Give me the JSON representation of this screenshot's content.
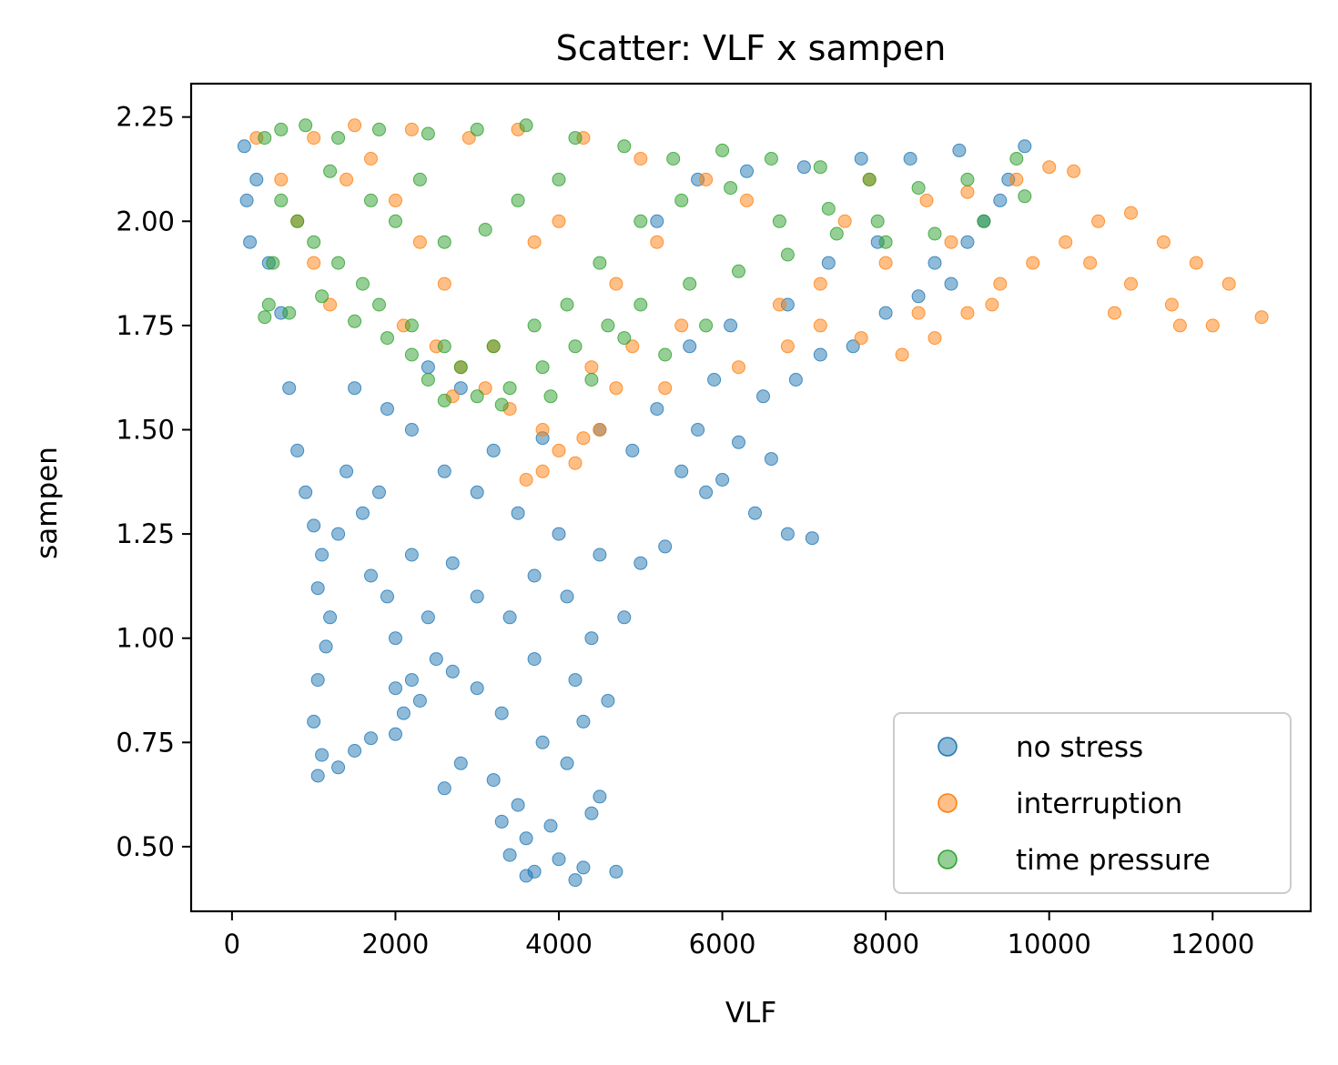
{
  "chart_data": {
    "type": "scatter",
    "title": "Scatter: VLF x sampen",
    "xlabel": "VLF",
    "ylabel": "sampen",
    "xlim": [
      -500,
      13200
    ],
    "ylim": [
      0.345,
      2.33
    ],
    "xticks": [
      0,
      2000,
      4000,
      6000,
      8000,
      10000,
      12000
    ],
    "xtick_labels": [
      "0",
      "2000",
      "4000",
      "6000",
      "8000",
      "10000",
      "12000"
    ],
    "yticks": [
      0.5,
      0.75,
      1.0,
      1.25,
      1.5,
      1.75,
      2.0,
      2.25
    ],
    "ytick_labels": [
      "0.50",
      "0.75",
      "1.00",
      "1.25",
      "1.50",
      "1.75",
      "2.00",
      "2.25"
    ],
    "grid": false,
    "legend_position": "lower-right",
    "marker_alpha": 0.5,
    "series": [
      {
        "name": "no stress",
        "color": "#1f77b4",
        "points": [
          [
            150,
            2.18
          ],
          [
            180,
            2.05
          ],
          [
            220,
            1.95
          ],
          [
            300,
            2.1
          ],
          [
            450,
            1.9
          ],
          [
            600,
            1.78
          ],
          [
            700,
            1.6
          ],
          [
            800,
            1.45
          ],
          [
            900,
            1.35
          ],
          [
            1000,
            1.27
          ],
          [
            1100,
            1.2
          ],
          [
            1050,
            1.12
          ],
          [
            1200,
            1.05
          ],
          [
            1150,
            0.98
          ],
          [
            1050,
            0.9
          ],
          [
            1000,
            0.8
          ],
          [
            1100,
            0.72
          ],
          [
            1050,
            0.67
          ],
          [
            1300,
            0.69
          ],
          [
            1500,
            0.73
          ],
          [
            1700,
            0.76
          ],
          [
            2000,
            0.77
          ],
          [
            2100,
            0.82
          ],
          [
            2300,
            0.85
          ],
          [
            2000,
            0.88
          ],
          [
            2200,
            0.9
          ],
          [
            2500,
            0.95
          ],
          [
            2700,
            0.92
          ],
          [
            3000,
            0.88
          ],
          [
            3300,
            0.82
          ],
          [
            2800,
            0.7
          ],
          [
            2600,
            0.64
          ],
          [
            3200,
            0.66
          ],
          [
            3500,
            0.6
          ],
          [
            3300,
            0.56
          ],
          [
            3600,
            0.52
          ],
          [
            3400,
            0.48
          ],
          [
            3700,
            0.44
          ],
          [
            4000,
            0.47
          ],
          [
            4300,
            0.45
          ],
          [
            4700,
            0.44
          ],
          [
            4200,
            0.42
          ],
          [
            3600,
            0.43
          ],
          [
            3900,
            0.55
          ],
          [
            4400,
            0.58
          ],
          [
            4500,
            0.62
          ],
          [
            4100,
            0.7
          ],
          [
            3800,
            0.75
          ],
          [
            4300,
            0.8
          ],
          [
            4600,
            0.85
          ],
          [
            4200,
            0.9
          ],
          [
            3700,
            0.95
          ],
          [
            4400,
            1.0
          ],
          [
            4800,
            1.05
          ],
          [
            4100,
            1.1
          ],
          [
            3700,
            1.15
          ],
          [
            4500,
            1.2
          ],
          [
            5000,
            1.18
          ],
          [
            5300,
            1.22
          ],
          [
            4000,
            1.25
          ],
          [
            3500,
            1.3
          ],
          [
            3000,
            1.35
          ],
          [
            2600,
            1.4
          ],
          [
            3200,
            1.45
          ],
          [
            3800,
            1.48
          ],
          [
            4500,
            1.5
          ],
          [
            5200,
            1.55
          ],
          [
            5700,
            1.5
          ],
          [
            6200,
            1.47
          ],
          [
            6600,
            1.43
          ],
          [
            6000,
            1.38
          ],
          [
            6400,
            1.3
          ],
          [
            6800,
            1.25
          ],
          [
            7100,
            1.24
          ],
          [
            5800,
            1.35
          ],
          [
            5500,
            1.4
          ],
          [
            4900,
            1.45
          ],
          [
            2200,
            1.5
          ],
          [
            1900,
            1.55
          ],
          [
            1500,
            1.6
          ],
          [
            2400,
            1.65
          ],
          [
            2800,
            1.6
          ],
          [
            1400,
            1.4
          ],
          [
            1800,
            1.35
          ],
          [
            1600,
            1.3
          ],
          [
            1300,
            1.25
          ],
          [
            2200,
            1.2
          ],
          [
            2700,
            1.18
          ],
          [
            3000,
            1.1
          ],
          [
            3400,
            1.05
          ],
          [
            1700,
            1.15
          ],
          [
            1900,
            1.1
          ],
          [
            2400,
            1.05
          ],
          [
            2000,
            1.0
          ],
          [
            6500,
            1.58
          ],
          [
            6900,
            1.62
          ],
          [
            7200,
            1.68
          ],
          [
            7600,
            1.7
          ],
          [
            8000,
            1.78
          ],
          [
            8400,
            1.82
          ],
          [
            8800,
            1.85
          ],
          [
            9200,
            2.0
          ],
          [
            9500,
            2.1
          ],
          [
            9700,
            2.18
          ],
          [
            8900,
            2.17
          ],
          [
            8300,
            2.15
          ],
          [
            7700,
            2.15
          ],
          [
            7000,
            2.13
          ],
          [
            6300,
            2.12
          ],
          [
            5700,
            2.1
          ],
          [
            5200,
            2.0
          ],
          [
            6800,
            1.8
          ],
          [
            7300,
            1.9
          ],
          [
            7900,
            1.95
          ],
          [
            8600,
            1.9
          ],
          [
            9000,
            1.95
          ],
          [
            9400,
            2.05
          ],
          [
            5600,
            1.7
          ],
          [
            6100,
            1.75
          ],
          [
            5900,
            1.62
          ]
        ]
      },
      {
        "name": "interruption",
        "color": "#ff7f0e",
        "points": [
          [
            300,
            2.2
          ],
          [
            600,
            2.1
          ],
          [
            800,
            2.0
          ],
          [
            1000,
            1.9
          ],
          [
            1200,
            1.8
          ],
          [
            1400,
            2.1
          ],
          [
            1700,
            2.15
          ],
          [
            2000,
            2.05
          ],
          [
            2300,
            1.95
          ],
          [
            2600,
            1.85
          ],
          [
            2100,
            1.75
          ],
          [
            2500,
            1.7
          ],
          [
            2800,
            1.65
          ],
          [
            3100,
            1.6
          ],
          [
            3400,
            1.55
          ],
          [
            3800,
            1.5
          ],
          [
            4000,
            1.45
          ],
          [
            3800,
            1.4
          ],
          [
            4200,
            1.42
          ],
          [
            4500,
            1.5
          ],
          [
            4700,
            1.6
          ],
          [
            3600,
            1.38
          ],
          [
            4300,
            1.48
          ],
          [
            2900,
            2.2
          ],
          [
            3500,
            2.22
          ],
          [
            4300,
            2.2
          ],
          [
            5000,
            2.15
          ],
          [
            5800,
            2.1
          ],
          [
            6300,
            2.05
          ],
          [
            5200,
            1.95
          ],
          [
            4700,
            1.85
          ],
          [
            6200,
            1.65
          ],
          [
            6800,
            1.7
          ],
          [
            7200,
            1.75
          ],
          [
            7700,
            1.72
          ],
          [
            8200,
            1.68
          ],
          [
            8600,
            1.72
          ],
          [
            9000,
            1.78
          ],
          [
            9400,
            1.85
          ],
          [
            9800,
            1.9
          ],
          [
            10200,
            1.95
          ],
          [
            10600,
            2.0
          ],
          [
            11000,
            2.02
          ],
          [
            11400,
            1.95
          ],
          [
            11800,
            1.9
          ],
          [
            12200,
            1.85
          ],
          [
            12600,
            1.77
          ],
          [
            12000,
            1.75
          ],
          [
            11500,
            1.8
          ],
          [
            10800,
            1.78
          ],
          [
            11000,
            1.85
          ],
          [
            11600,
            1.75
          ],
          [
            10500,
            1.9
          ],
          [
            10000,
            2.13
          ],
          [
            10300,
            2.12
          ],
          [
            9600,
            2.1
          ],
          [
            9000,
            2.07
          ],
          [
            8500,
            2.05
          ],
          [
            7800,
            2.1
          ],
          [
            7500,
            2.0
          ],
          [
            8000,
            1.9
          ],
          [
            8800,
            1.95
          ],
          [
            9300,
            1.8
          ],
          [
            8400,
            1.78
          ],
          [
            7200,
            1.85
          ],
          [
            6700,
            1.8
          ],
          [
            5500,
            1.75
          ],
          [
            4900,
            1.7
          ],
          [
            1000,
            2.2
          ],
          [
            1500,
            2.23
          ],
          [
            2200,
            2.22
          ],
          [
            3700,
            1.95
          ],
          [
            4000,
            2.0
          ],
          [
            2700,
            1.58
          ],
          [
            3200,
            1.7
          ],
          [
            4400,
            1.65
          ],
          [
            5300,
            1.6
          ]
        ]
      },
      {
        "name": "time pressure",
        "color": "#2ca02c",
        "points": [
          [
            400,
            2.2
          ],
          [
            600,
            2.22
          ],
          [
            900,
            2.23
          ],
          [
            1300,
            2.2
          ],
          [
            1800,
            2.22
          ],
          [
            2400,
            2.21
          ],
          [
            3000,
            2.22
          ],
          [
            3600,
            2.23
          ],
          [
            4200,
            2.2
          ],
          [
            4800,
            2.18
          ],
          [
            5400,
            2.15
          ],
          [
            6000,
            2.17
          ],
          [
            6600,
            2.15
          ],
          [
            7200,
            2.13
          ],
          [
            7800,
            2.1
          ],
          [
            8400,
            2.08
          ],
          [
            9000,
            2.1
          ],
          [
            9600,
            2.15
          ],
          [
            9700,
            2.06
          ],
          [
            9200,
            2.0
          ],
          [
            8600,
            1.97
          ],
          [
            8000,
            1.95
          ],
          [
            7400,
            1.97
          ],
          [
            6800,
            1.92
          ],
          [
            6200,
            1.88
          ],
          [
            5600,
            1.85
          ],
          [
            5000,
            1.8
          ],
          [
            4600,
            1.75
          ],
          [
            4200,
            1.7
          ],
          [
            3800,
            1.65
          ],
          [
            3400,
            1.6
          ],
          [
            3000,
            1.58
          ],
          [
            2600,
            1.57
          ],
          [
            2400,
            1.62
          ],
          [
            2600,
            1.7
          ],
          [
            2200,
            1.75
          ],
          [
            1800,
            1.8
          ],
          [
            1600,
            1.85
          ],
          [
            1300,
            1.9
          ],
          [
            1000,
            1.95
          ],
          [
            800,
            2.0
          ],
          [
            600,
            2.05
          ],
          [
            500,
            1.9
          ],
          [
            450,
            1.8
          ],
          [
            400,
            1.77
          ],
          [
            700,
            1.78
          ],
          [
            1100,
            1.82
          ],
          [
            1500,
            1.76
          ],
          [
            1900,
            1.72
          ],
          [
            2200,
            1.68
          ],
          [
            2800,
            1.65
          ],
          [
            3200,
            1.7
          ],
          [
            3700,
            1.75
          ],
          [
            4100,
            1.8
          ],
          [
            4400,
            1.62
          ],
          [
            3900,
            1.58
          ],
          [
            3300,
            1.56
          ],
          [
            4500,
            1.9
          ],
          [
            5000,
            2.0
          ],
          [
            5500,
            2.05
          ],
          [
            6100,
            2.08
          ],
          [
            6700,
            2.0
          ],
          [
            7300,
            2.03
          ],
          [
            7900,
            2.0
          ],
          [
            2000,
            2.0
          ],
          [
            2600,
            1.95
          ],
          [
            3100,
            1.98
          ],
          [
            3500,
            2.05
          ],
          [
            4000,
            2.1
          ],
          [
            1200,
            2.12
          ],
          [
            1700,
            2.05
          ],
          [
            2300,
            2.1
          ],
          [
            4800,
            1.72
          ],
          [
            5300,
            1.68
          ],
          [
            5800,
            1.75
          ]
        ]
      }
    ]
  }
}
